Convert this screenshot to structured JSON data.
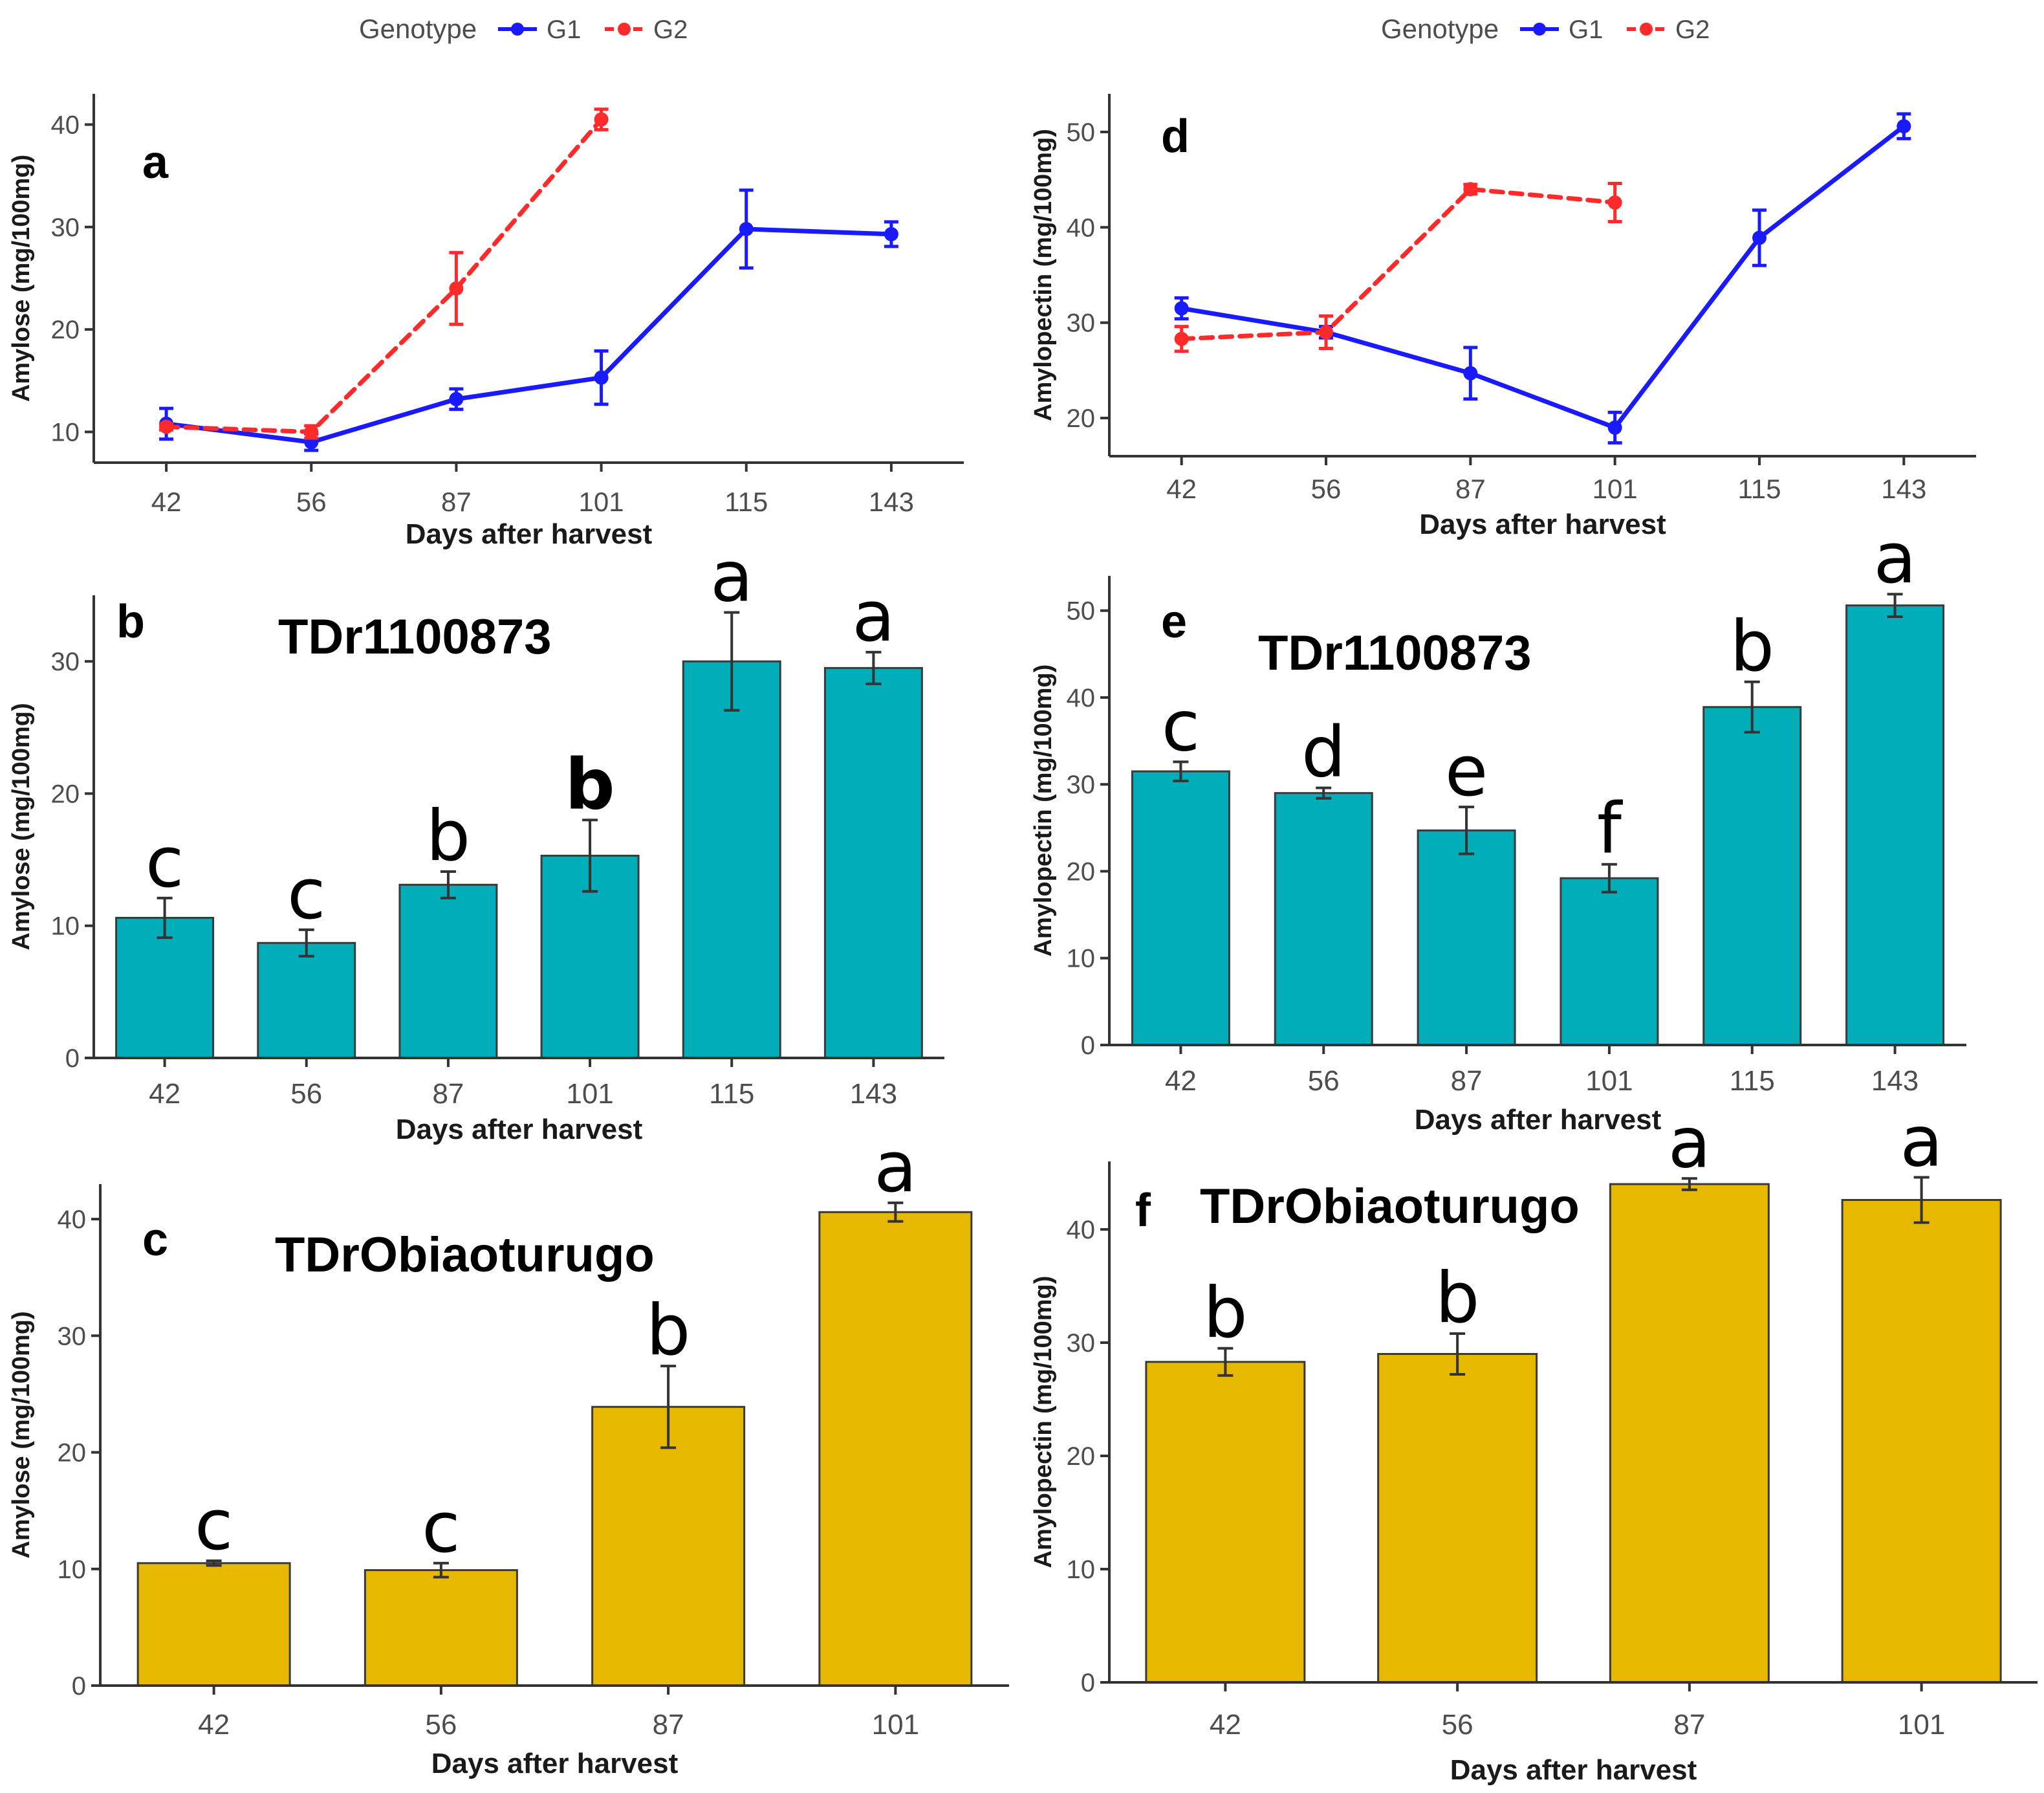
{
  "chart_data": [
    {
      "panel": "a",
      "type": "line",
      "legend": {
        "title": "Genotype",
        "position": "top",
        "entries": [
          "G1",
          "G2"
        ]
      },
      "categories": [
        "42",
        "56",
        "87",
        "101",
        "115",
        "143"
      ],
      "xlabel": "Days after harvest",
      "ylabel": "Amylose (mg/100mg)",
      "ylim": [
        7,
        43
      ],
      "yticks": [
        10,
        20,
        30,
        40
      ],
      "series": [
        {
          "name": "G1",
          "color": "#1a1aff",
          "dashed": false,
          "values": [
            10.8,
            9.0,
            13.2,
            15.3,
            29.8,
            29.3
          ],
          "errors": [
            1.5,
            0.8,
            1.0,
            2.6,
            3.8,
            1.2
          ]
        },
        {
          "name": "G2",
          "color": "#ff2a2a",
          "dashed": true,
          "values": [
            10.5,
            10.0,
            24.0,
            40.5,
            null,
            null
          ],
          "errors": [
            0.3,
            0.6,
            3.5,
            1.0,
            null,
            null
          ]
        }
      ]
    },
    {
      "panel": "d",
      "type": "line",
      "legend": {
        "title": "Genotype",
        "position": "top",
        "entries": [
          "G1",
          "G2"
        ]
      },
      "categories": [
        "42",
        "56",
        "87",
        "101",
        "115",
        "143"
      ],
      "xlabel": "Days after harvest",
      "ylabel": "Amylopectin (mg/100mg)",
      "ylim": [
        16,
        54
      ],
      "yticks": [
        20,
        30,
        40,
        50
      ],
      "series": [
        {
          "name": "G1",
          "color": "#1a1aff",
          "dashed": false,
          "values": [
            31.5,
            29.0,
            24.7,
            19.0,
            38.9,
            50.6
          ],
          "errors": [
            1.1,
            0.6,
            2.7,
            1.6,
            2.9,
            1.3
          ]
        },
        {
          "name": "G2",
          "color": "#ff2a2a",
          "dashed": true,
          "values": [
            28.3,
            29.0,
            44.0,
            42.6,
            null,
            null
          ],
          "errors": [
            1.3,
            1.7,
            0.5,
            2.0,
            null,
            null
          ]
        }
      ]
    },
    {
      "panel": "b",
      "type": "bar",
      "title": "TDr1100873",
      "categories": [
        "42",
        "56",
        "87",
        "101",
        "115",
        "143"
      ],
      "values": [
        10.6,
        8.7,
        13.1,
        15.3,
        30.0,
        29.5
      ],
      "errors": [
        1.5,
        1.0,
        1.0,
        2.7,
        3.7,
        1.2
      ],
      "letters": [
        "c",
        "c",
        "b",
        "b",
        "a",
        "a"
      ],
      "bold_letter_index": 3,
      "color": "#00adb9",
      "xlabel": "Days after harvest",
      "ylabel": "Amylose (mg/100mg)",
      "ylim": [
        0,
        35
      ],
      "yticks": [
        0,
        10,
        20,
        30
      ]
    },
    {
      "panel": "e",
      "type": "bar",
      "title": "TDr1100873",
      "categories": [
        "42",
        "56",
        "87",
        "101",
        "115",
        "143"
      ],
      "values": [
        31.5,
        29.0,
        24.7,
        19.2,
        38.9,
        50.6
      ],
      "errors": [
        1.1,
        0.6,
        2.7,
        1.6,
        2.9,
        1.3
      ],
      "letters": [
        "c",
        "d",
        "e",
        "f",
        "b",
        "a"
      ],
      "color": "#00adb9",
      "xlabel": "Days after harvest",
      "ylabel": "Amylopectin (mg/100mg)",
      "ylim": [
        0,
        54
      ],
      "yticks": [
        0,
        10,
        20,
        30,
        40,
        50
      ]
    },
    {
      "panel": "c",
      "type": "bar",
      "title": "TDrObiaoturugo",
      "categories": [
        "42",
        "56",
        "87",
        "101"
      ],
      "values": [
        10.5,
        9.9,
        23.9,
        40.6
      ],
      "errors": [
        0.2,
        0.6,
        3.5,
        0.8
      ],
      "letters": [
        "c",
        "c",
        "b",
        "a"
      ],
      "color": "#e6b800",
      "xlabel": "Days after harvest",
      "ylabel": "Amylose (mg/100mg)",
      "ylim": [
        0,
        43
      ],
      "yticks": [
        0,
        10,
        20,
        30,
        40
      ]
    },
    {
      "panel": "f",
      "type": "bar",
      "title": "TDrObiaoturugo",
      "categories": [
        "42",
        "56",
        "87",
        "101"
      ],
      "values": [
        28.3,
        29.0,
        44.0,
        42.6
      ],
      "errors": [
        1.2,
        1.8,
        0.5,
        2.0
      ],
      "letters": [
        "b",
        "b",
        "a",
        "a"
      ],
      "color": "#e6b800",
      "xlabel": "Days after harvest",
      "ylabel": "Amylopectin (mg/100mg)",
      "ylim": [
        0,
        46
      ],
      "yticks": [
        0,
        10,
        20,
        30,
        40
      ]
    }
  ]
}
